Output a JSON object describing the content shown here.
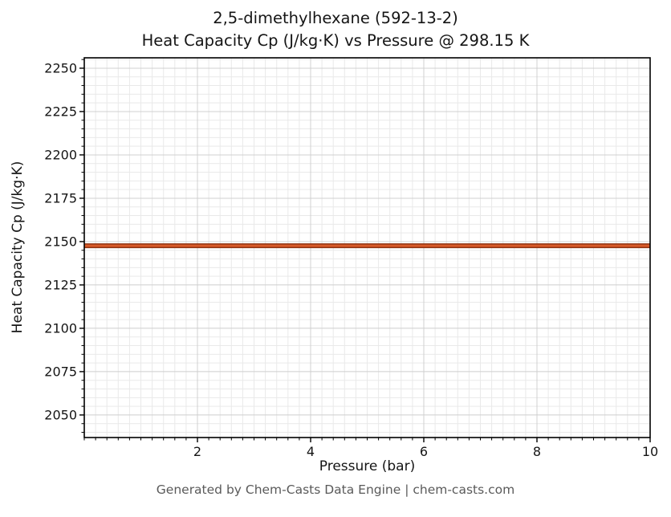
{
  "title": {
    "line1": "2,5-dimethylhexane (592-13-2)",
    "line2": "Heat Capacity Cp (J/kg·K) vs Pressure @ 298.15 K"
  },
  "footer": "Generated by Chem-Casts Data Engine | chem-casts.com",
  "chart_data": {
    "type": "line",
    "title": "2,5-dimethylhexane (592-13-2) Heat Capacity Cp (J/kg·K) vs Pressure @ 298.15 K",
    "xlabel": "Pressure (bar)",
    "ylabel": "Heat Capacity Cp (J/kg·K)",
    "xlim": [
      0,
      10
    ],
    "ylim": [
      2037,
      2256
    ],
    "x_ticks": [
      2,
      4,
      6,
      8,
      10
    ],
    "y_ticks": [
      2050,
      2075,
      2100,
      2125,
      2150,
      2175,
      2200,
      2225,
      2250
    ],
    "x_minor_step": 0.2,
    "y_minor_step": 5,
    "grid": "both",
    "legend": "none",
    "series": [
      {
        "name": "Heat Capacity Cp",
        "x": [
          0,
          1,
          2,
          3,
          4,
          5,
          6,
          7,
          8,
          9,
          10
        ],
        "values": [
          2147.6,
          2147.6,
          2147.6,
          2147.6,
          2147.6,
          2147.6,
          2147.6,
          2147.6,
          2147.6,
          2147.6,
          2147.6
        ]
      }
    ],
    "colors": {
      "line_edge": "#8f3210",
      "line_core": "#d85a28",
      "grid_major": "#d0d0d0",
      "grid_minor": "#e9e9e9",
      "axis": "#000000",
      "text": "#151515"
    }
  }
}
